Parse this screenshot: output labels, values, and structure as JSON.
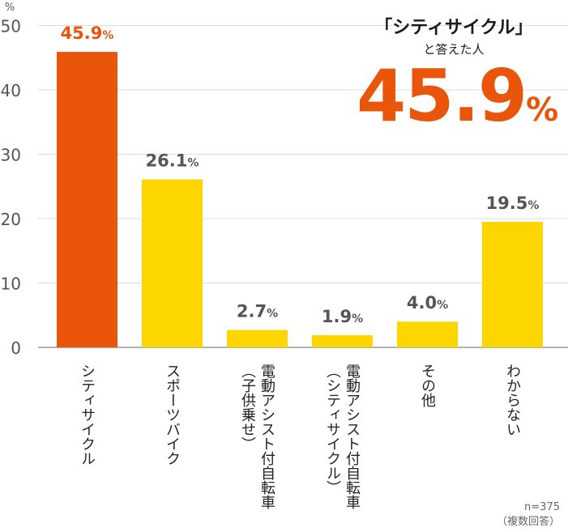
{
  "chart_data": {
    "type": "bar",
    "y_unit": "%",
    "ylim": [
      0,
      50
    ],
    "yticks": [
      0,
      10,
      20,
      30,
      40,
      50
    ],
    "grid": true,
    "categories": [
      [
        "シティサイクル"
      ],
      [
        "スポーツバイク"
      ],
      [
        "電動アシスト付自転車",
        "（子供乗せ）"
      ],
      [
        "電動アシスト付自転車",
        "（シティサイクル）"
      ],
      [
        "その他"
      ],
      [
        "わからない"
      ]
    ],
    "values": [
      45.9,
      26.1,
      2.7,
      1.9,
      4.0,
      19.5
    ],
    "value_labels": [
      "45.9",
      "26.1",
      "2.7",
      "1.9",
      "4.0",
      "19.5"
    ],
    "highlight_index": 0,
    "colors": {
      "highlight": "#e8550b",
      "default": "#fdd600",
      "label_default": "#555555"
    }
  },
  "callout": {
    "line1": "「シティサイクル」",
    "line2": "と答えた人",
    "value": "45.9",
    "unit": "%"
  },
  "note": {
    "n": "n=375",
    "method": "（複数回答）"
  }
}
